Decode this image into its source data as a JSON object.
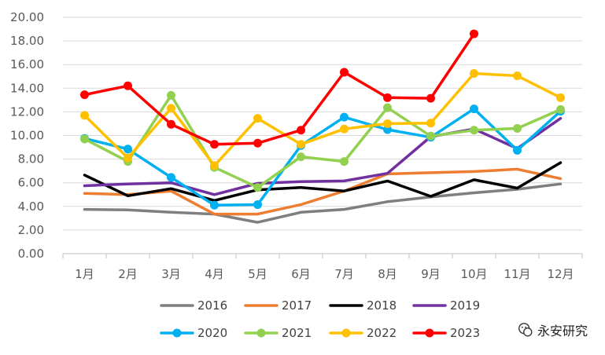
{
  "chart_data": {
    "type": "line",
    "categories": [
      "1月",
      "2月",
      "3月",
      "4月",
      "5月",
      "6月",
      "7月",
      "8月",
      "9月",
      "10月",
      "11月",
      "12月"
    ],
    "ylim": [
      0,
      20
    ],
    "yticks": [
      "0.00",
      "2.00",
      "4.00",
      "6.00",
      "8.00",
      "10.00",
      "12.00",
      "14.00",
      "16.00",
      "18.00",
      "20.00"
    ],
    "grid": true,
    "legend_position": "bottom",
    "series": [
      {
        "name": "2016",
        "color": "#7f7f7f",
        "markers": false,
        "values": [
          3.75,
          3.7,
          3.5,
          3.35,
          2.65,
          3.5,
          3.75,
          4.4,
          4.8,
          5.15,
          5.45,
          5.9
        ]
      },
      {
        "name": "2017",
        "color": "#ed7d31",
        "markers": false,
        "values": [
          5.1,
          5.0,
          5.3,
          3.35,
          3.35,
          4.15,
          5.3,
          6.75,
          6.85,
          6.95,
          7.15,
          6.35
        ]
      },
      {
        "name": "2018",
        "color": "#000000",
        "markers": false,
        "values": [
          6.65,
          4.9,
          5.5,
          4.5,
          5.4,
          5.6,
          5.3,
          6.15,
          4.85,
          6.25,
          5.55,
          7.7
        ]
      },
      {
        "name": "2019",
        "color": "#7030a0",
        "markers": false,
        "values": [
          5.75,
          5.9,
          6.0,
          5.0,
          5.95,
          6.1,
          6.15,
          6.8,
          9.9,
          10.55,
          8.9,
          11.45
        ]
      },
      {
        "name": "2020",
        "color": "#00b0f0",
        "markers": true,
        "values": [
          9.75,
          8.85,
          6.45,
          4.1,
          4.15,
          9.15,
          11.55,
          10.5,
          9.85,
          12.25,
          8.75,
          12.05
        ]
      },
      {
        "name": "2021",
        "color": "#92d050",
        "markers": true,
        "values": [
          9.7,
          7.8,
          13.4,
          7.3,
          5.6,
          8.2,
          7.8,
          12.35,
          9.95,
          10.45,
          10.6,
          12.2
        ]
      },
      {
        "name": "2022",
        "color": "#ffc000",
        "markers": true,
        "values": [
          11.7,
          8.1,
          12.3,
          7.45,
          11.45,
          9.25,
          10.55,
          11.0,
          11.05,
          15.25,
          15.05,
          13.2
        ]
      },
      {
        "name": "2023",
        "color": "#ff0000",
        "markers": true,
        "values": [
          13.45,
          14.2,
          10.95,
          9.25,
          9.35,
          10.45,
          15.35,
          13.2,
          13.15,
          18.6,
          null,
          null
        ]
      }
    ]
  },
  "watermark": {
    "text": "永安研究",
    "icon": "wechat-icon"
  }
}
